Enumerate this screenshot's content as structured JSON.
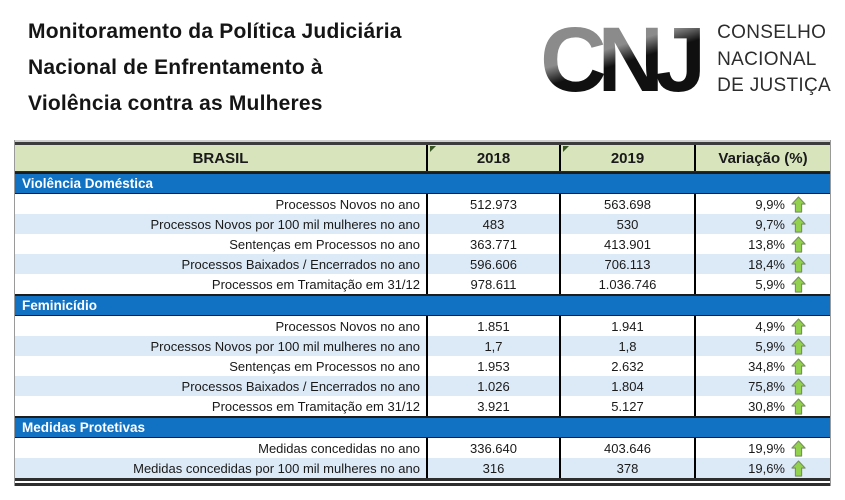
{
  "header": {
    "title_lines": [
      "Monitoramento da Política Judiciária",
      "Nacional de Enfrentamento à",
      "Violência contra as Mulheres"
    ],
    "logo": {
      "acronym": "CNJ",
      "wordmark_lines": [
        "CONSELHO",
        "NACIONAL",
        "DE JUSTIÇA"
      ]
    }
  },
  "colors": {
    "header_bg": "#D7E4BC",
    "section_band": "#1172C3",
    "row_alt": "#DCE9F6",
    "arrow_fill": "#92D050",
    "arrow_stroke": "#7a8c6a",
    "corner_flag": "#375623"
  },
  "table": {
    "columns": [
      "BRASIL",
      "2018",
      "2019",
      "Variação (%)"
    ],
    "sections": [
      {
        "title": "Violência Doméstica",
        "rows": [
          {
            "label": "Processos Novos no ano",
            "v2018": "512.973",
            "v2019": "563.698",
            "variation": "9,9%",
            "trend": "up"
          },
          {
            "label": "Processos Novos por 100 mil mulheres no ano",
            "v2018": "483",
            "v2019": "530",
            "variation": "9,7%",
            "trend": "up"
          },
          {
            "label": "Sentenças em Processos no ano",
            "v2018": "363.771",
            "v2019": "413.901",
            "variation": "13,8%",
            "trend": "up"
          },
          {
            "label": "Processos Baixados / Encerrados no ano",
            "v2018": "596.606",
            "v2019": "706.113",
            "variation": "18,4%",
            "trend": "up"
          },
          {
            "label": "Processos em Tramitação em 31/12",
            "v2018": "978.611",
            "v2019": "1.036.746",
            "variation": "5,9%",
            "trend": "up"
          }
        ]
      },
      {
        "title": "Feminicídio",
        "rows": [
          {
            "label": "Processos Novos no ano",
            "v2018": "1.851",
            "v2019": "1.941",
            "variation": "4,9%",
            "trend": "up"
          },
          {
            "label": "Processos Novos por 100 mil mulheres no ano",
            "v2018": "1,7",
            "v2019": "1,8",
            "variation": "5,9%",
            "trend": "up"
          },
          {
            "label": "Sentenças em Processos no ano",
            "v2018": "1.953",
            "v2019": "2.632",
            "variation": "34,8%",
            "trend": "up"
          },
          {
            "label": "Processos Baixados / Encerrados no ano",
            "v2018": "1.026",
            "v2019": "1.804",
            "variation": "75,8%",
            "trend": "up"
          },
          {
            "label": "Processos em Tramitação em 31/12",
            "v2018": "3.921",
            "v2019": "5.127",
            "variation": "30,8%",
            "trend": "up"
          }
        ]
      },
      {
        "title": "Medidas Protetivas",
        "rows": [
          {
            "label": "Medidas concedidas no ano",
            "v2018": "336.640",
            "v2019": "403.646",
            "variation": "19,9%",
            "trend": "up"
          },
          {
            "label": "Medidas concedidas por 100 mil mulheres no ano",
            "v2018": "316",
            "v2019": "378",
            "variation": "19,6%",
            "trend": "up"
          }
        ]
      }
    ]
  }
}
